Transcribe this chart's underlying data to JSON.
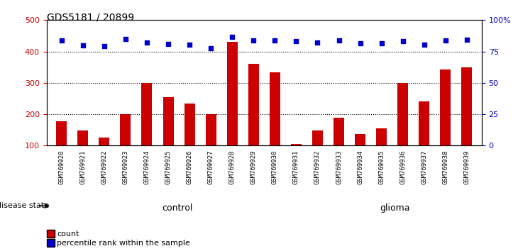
{
  "title": "GDS5181 / 20899",
  "samples": [
    "GSM769920",
    "GSM769921",
    "GSM769922",
    "GSM769923",
    "GSM769924",
    "GSM769925",
    "GSM769926",
    "GSM769927",
    "GSM769928",
    "GSM769929",
    "GSM769930",
    "GSM769931",
    "GSM769932",
    "GSM769933",
    "GSM769934",
    "GSM769935",
    "GSM769936",
    "GSM769937",
    "GSM769938",
    "GSM769939"
  ],
  "counts": [
    178,
    148,
    126,
    200,
    300,
    255,
    233,
    200,
    430,
    360,
    333,
    105,
    148,
    188,
    138,
    155,
    300,
    240,
    343,
    350
  ],
  "percentiles": [
    435,
    420,
    418,
    440,
    428,
    425,
    422,
    410,
    447,
    435,
    435,
    432,
    428,
    435,
    426,
    426,
    432,
    422,
    435,
    438
  ],
  "control_count": 12,
  "glioma_count": 8,
  "ylim_left": [
    100,
    500
  ],
  "ylim_right": [
    0,
    100
  ],
  "yticks_left": [
    100,
    200,
    300,
    400,
    500
  ],
  "yticks_right": [
    0,
    25,
    50,
    75,
    100
  ],
  "bar_color": "#cc0000",
  "dot_color": "#0000cc",
  "control_bg": "#ccffcc",
  "glioma_bg": "#66ff66",
  "control_label": "control",
  "glioma_label": "glioma",
  "disease_state_label": "disease state",
  "legend_count_label": "count",
  "legend_pct_label": "percentile rank within the sample",
  "grid_color": "#000000",
  "axis_label_color_left": "#cc0000",
  "axis_label_color_right": "#0000cc"
}
